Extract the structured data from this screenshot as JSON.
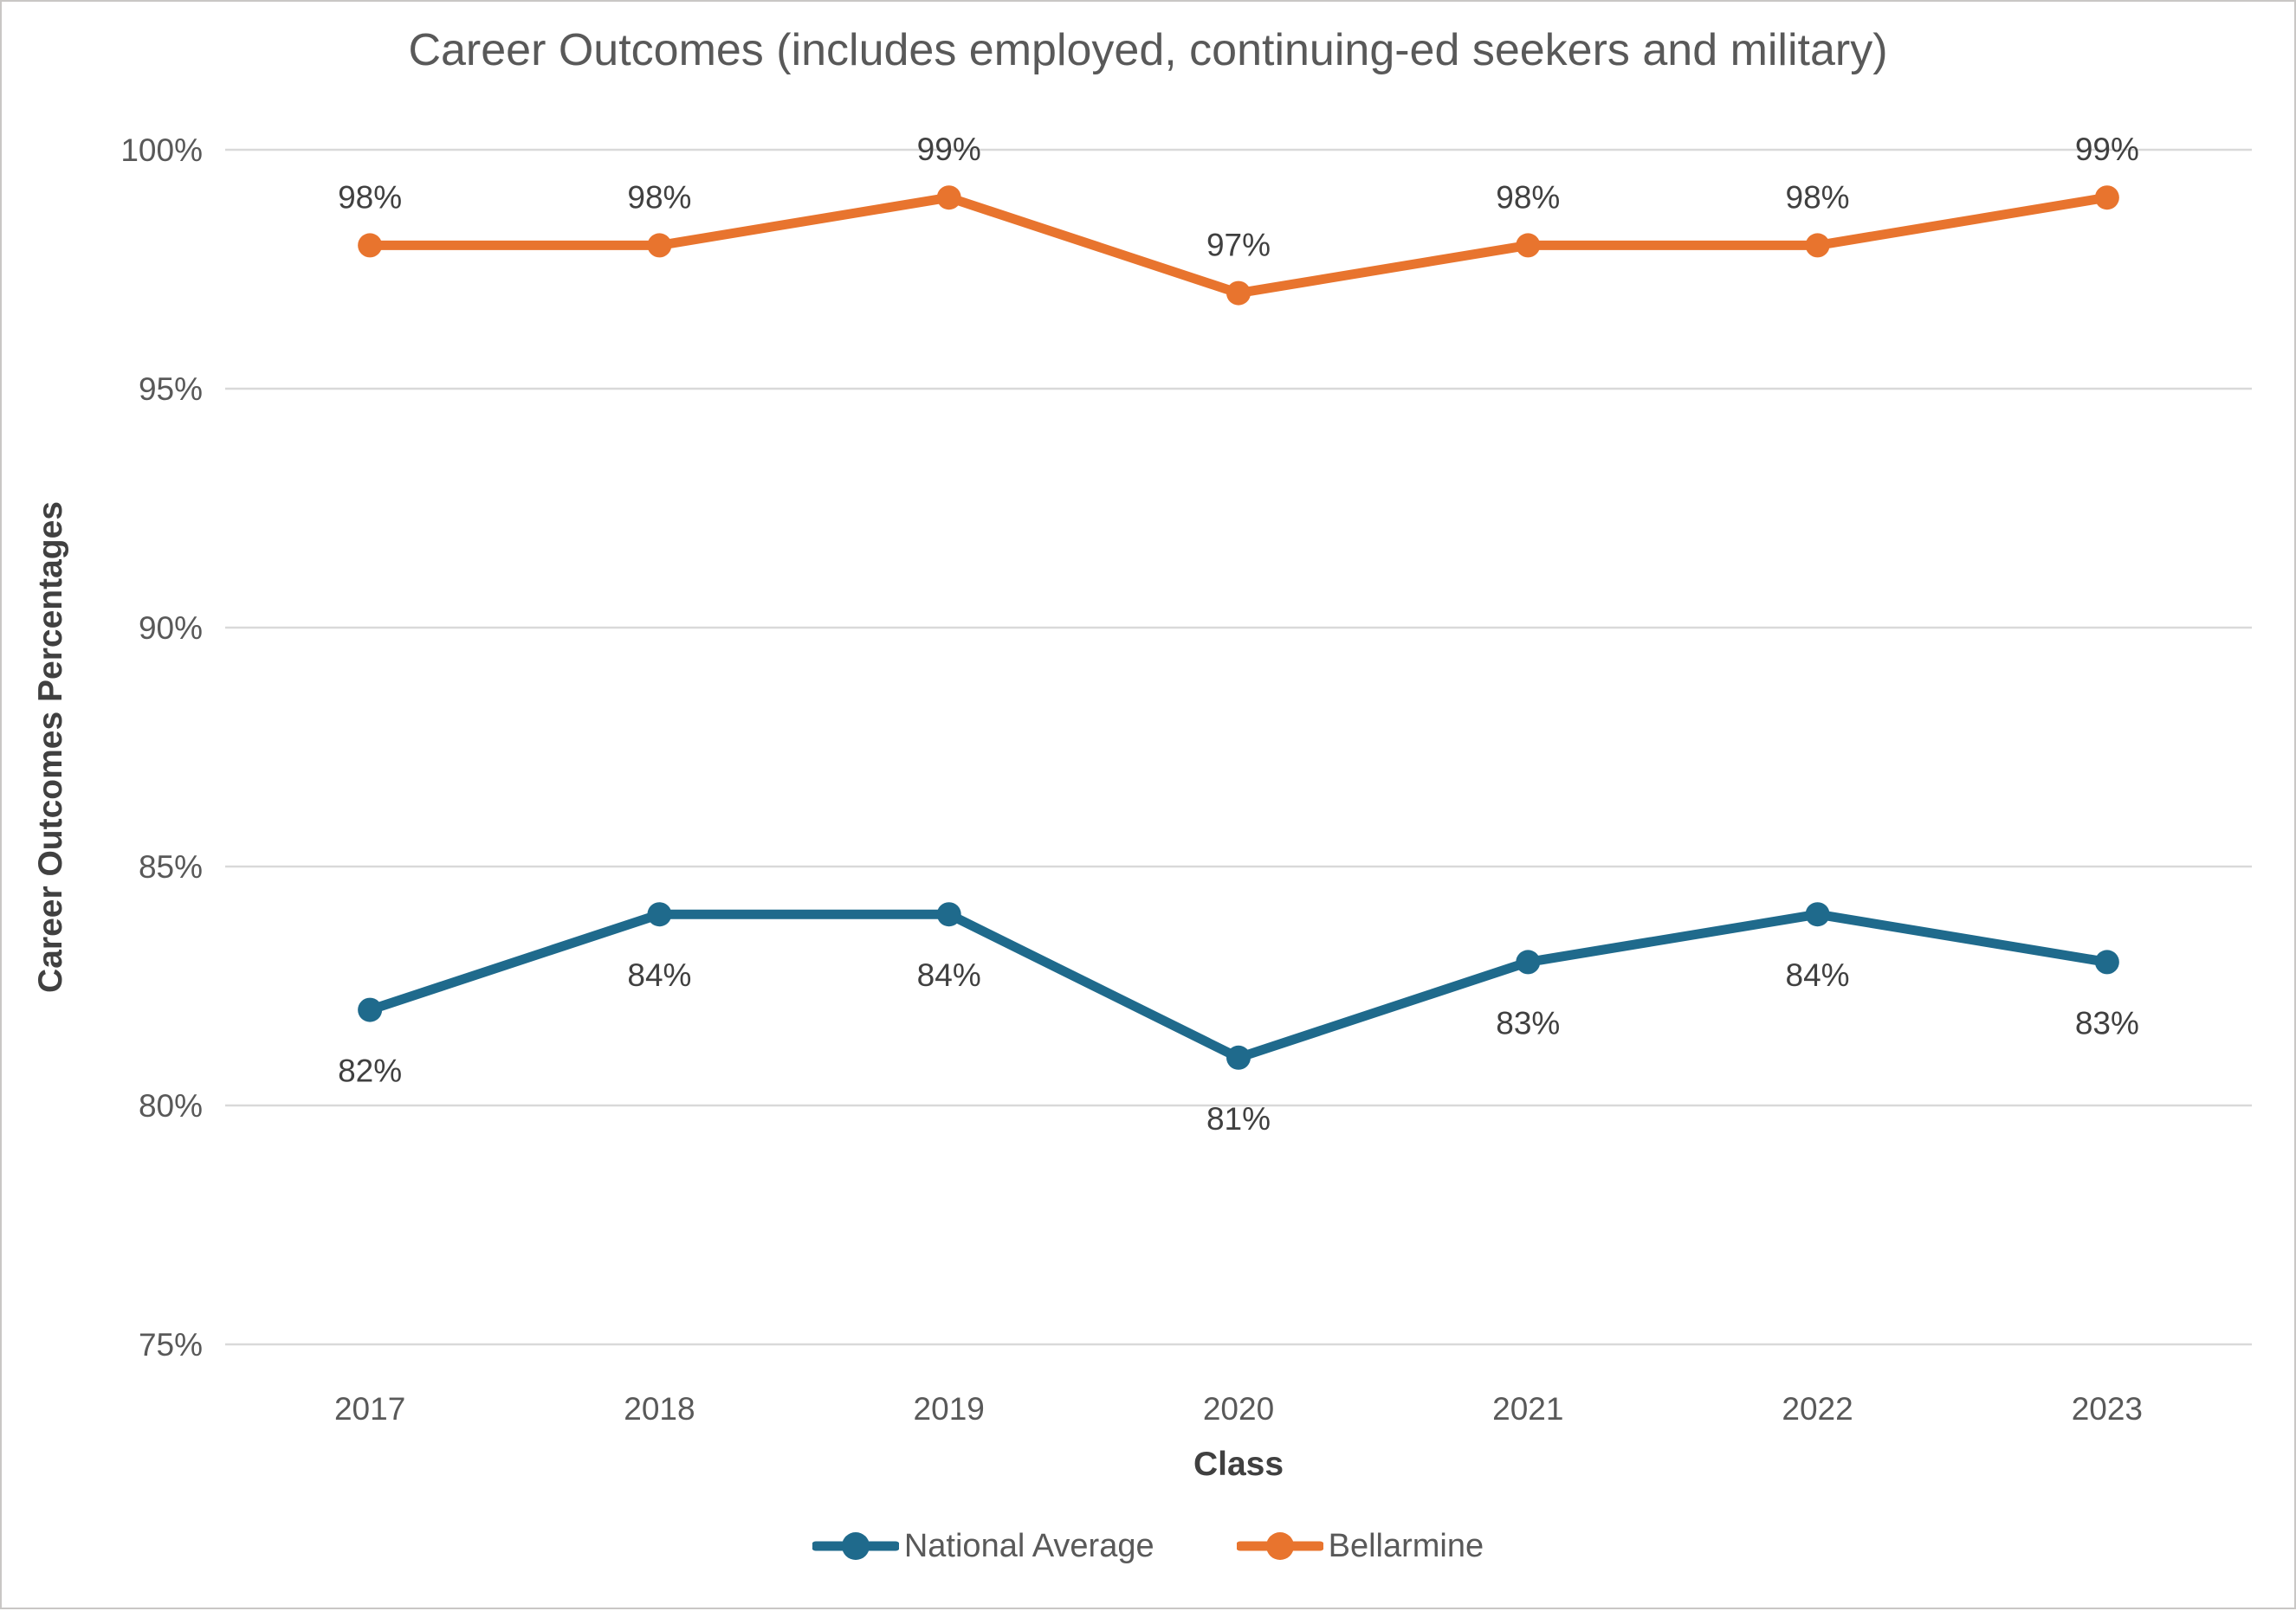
{
  "chart_data": {
    "type": "line",
    "title": "Career Outcomes (includes employed, continuing-ed seekers and military)",
    "xlabel": "Class",
    "ylabel": "Career Outcomes Percentages",
    "categories": [
      "2017",
      "2018",
      "2019",
      "2020",
      "2021",
      "2022",
      "2023"
    ],
    "series": [
      {
        "name": "National Average",
        "color": "#1F6A8C",
        "values": [
          82,
          84,
          84,
          81,
          83,
          84,
          83
        ],
        "label_position": "below"
      },
      {
        "name": "Bellarmine",
        "color": "#E8742E",
        "values": [
          98,
          98,
          99,
          97,
          98,
          98,
          99
        ],
        "label_position": "above"
      }
    ],
    "ylim": [
      75,
      100
    ],
    "ytick_step": 5,
    "ytick_labels": [
      "75%",
      "80%",
      "85%",
      "90%",
      "95%",
      "100%"
    ],
    "data_label_format": "percent",
    "grid": true,
    "legend_position": "bottom"
  },
  "style": {
    "title_color": "#595959",
    "tick_label_color": "#595959",
    "data_label_color": "#404040",
    "axis_title_color": "#404040",
    "gridline_color": "#D9D9D9",
    "background_color": "#FFFFFF",
    "border_color": "#C9C7C5"
  }
}
